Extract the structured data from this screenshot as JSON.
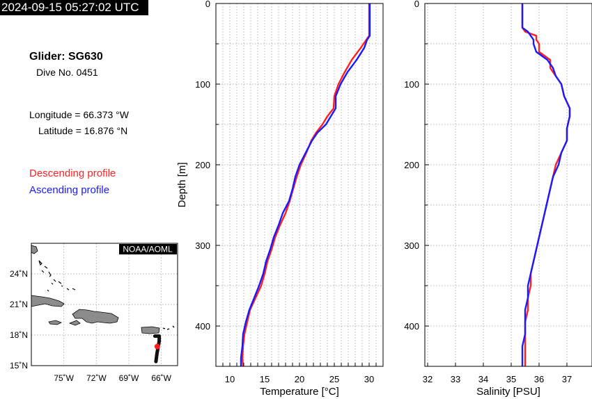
{
  "timestamp": "2024-09-15 05:27:02 UTC",
  "info": {
    "glider": "Glider: SG630",
    "dive": "Dive No. 0451",
    "longitude": "Longitude = 66.373 °W",
    "latitude": "Latitude = 16.876 °N"
  },
  "legend": {
    "descending": "Descending profile",
    "ascending": "Ascending profile"
  },
  "colors": {
    "descending": "#ff1f1f",
    "ascending": "#1a1aff",
    "land": "#8c8c8c",
    "track": "#111111",
    "grid": "#9a9a9a"
  },
  "map": {
    "label": "NOAA/AOML",
    "lat_ticks": [
      "24˚N",
      "21˚N",
      "18˚N",
      "15˚N"
    ],
    "lon_ticks": [
      "75˚W",
      "72˚W",
      "69˚W",
      "66˚W"
    ],
    "lon_range": [
      -78,
      -64.5
    ],
    "lat_range": [
      15,
      27
    ],
    "track": [
      [
        -66.6,
        17.9
      ],
      [
        -66.2,
        17.9
      ],
      [
        -66.2,
        17.4
      ],
      [
        -66.3,
        16.8
      ],
      [
        -66.4,
        16.2
      ],
      [
        -66.5,
        15.4
      ]
    ],
    "current_position": [
      -66.373,
      16.876
    ]
  },
  "chart_data": [
    {
      "type": "line",
      "xlabel": "Temperature [°C]",
      "ylabel": "Depth [m]",
      "xlim": [
        8,
        32
      ],
      "ylim": [
        450,
        0
      ],
      "xticks": [
        "10",
        "15",
        "20",
        "25",
        "30"
      ],
      "yticks": [
        "0",
        "100",
        "200",
        "300",
        "400"
      ],
      "grid": true,
      "series": [
        {
          "name": "Descending profile",
          "color": "#ff1f1f",
          "depth": [
            0,
            20,
            40,
            45,
            55,
            70,
            85,
            100,
            115,
            130,
            140,
            150,
            160,
            170,
            185,
            200,
            215,
            230,
            245,
            260,
            275,
            290,
            305,
            320,
            335,
            350,
            365,
            380,
            395,
            410,
            425,
            440,
            450
          ],
          "temp": [
            30.0,
            30.0,
            30.0,
            29.6,
            28.8,
            27.5,
            26.5,
            25.6,
            25.0,
            24.9,
            24.0,
            23.3,
            22.4,
            21.7,
            21.0,
            20.2,
            19.6,
            19.1,
            18.6,
            18.0,
            17.2,
            16.5,
            16.0,
            15.4,
            15.0,
            14.5,
            13.7,
            12.9,
            12.5,
            12.1,
            11.9,
            11.8,
            11.9
          ]
        },
        {
          "name": "Ascending profile",
          "color": "#1a1aff",
          "depth": [
            0,
            20,
            40,
            45,
            55,
            70,
            85,
            100,
            115,
            130,
            140,
            150,
            160,
            170,
            185,
            200,
            215,
            230,
            245,
            260,
            275,
            290,
            305,
            320,
            335,
            350,
            365,
            380,
            395,
            410,
            425,
            440,
            450
          ],
          "temp": [
            30.1,
            30.1,
            30.1,
            29.7,
            29.3,
            28.2,
            26.9,
            25.9,
            25.2,
            25.2,
            24.5,
            23.8,
            22.6,
            21.8,
            20.9,
            20.0,
            19.4,
            19.0,
            18.5,
            17.6,
            17.0,
            16.3,
            15.8,
            15.2,
            14.8,
            14.2,
            13.5,
            12.8,
            12.3,
            11.9,
            11.8,
            11.6,
            11.6
          ]
        }
      ]
    },
    {
      "type": "line",
      "xlabel": "Salinity [PSU]",
      "ylabel": "",
      "xlim": [
        31.9,
        37.9
      ],
      "ylim": [
        450,
        0
      ],
      "xticks": [
        "32",
        "33",
        "34",
        "35",
        "36",
        "37"
      ],
      "yticks": [
        "0",
        "100",
        "200",
        "300",
        "400"
      ],
      "grid": true,
      "series": [
        {
          "name": "Descending profile",
          "color": "#ff1f1f",
          "depth": [
            0,
            30,
            35,
            40,
            45,
            50,
            60,
            65,
            70,
            80,
            90,
            100,
            115,
            130,
            140,
            155,
            170,
            185,
            200,
            215,
            230,
            245,
            260,
            275,
            290,
            305,
            320,
            335,
            350,
            365,
            380,
            395,
            410,
            425,
            440,
            450
          ],
          "sal": [
            35.4,
            35.4,
            35.5,
            35.9,
            35.9,
            36.0,
            36.0,
            36.2,
            36.4,
            36.4,
            36.6,
            36.8,
            36.9,
            37.1,
            37.1,
            37.0,
            37.0,
            36.8,
            36.6,
            36.5,
            36.4,
            36.3,
            36.2,
            36.1,
            36.0,
            35.9,
            35.8,
            35.7,
            35.7,
            35.6,
            35.6,
            35.5,
            35.5,
            35.5,
            35.5,
            35.5
          ]
        },
        {
          "name": "Ascending profile",
          "color": "#1a1aff",
          "depth": [
            0,
            30,
            35,
            40,
            45,
            50,
            60,
            65,
            70,
            80,
            90,
            100,
            115,
            130,
            140,
            155,
            170,
            185,
            200,
            215,
            230,
            245,
            260,
            275,
            290,
            305,
            320,
            335,
            350,
            365,
            380,
            395,
            410,
            425,
            440,
            450
          ],
          "sal": [
            35.4,
            35.4,
            35.6,
            35.7,
            35.8,
            35.8,
            35.9,
            36.1,
            36.3,
            36.5,
            36.6,
            36.8,
            36.9,
            37.1,
            37.1,
            37.0,
            37.0,
            36.8,
            36.7,
            36.5,
            36.4,
            36.3,
            36.2,
            36.1,
            36.0,
            35.9,
            35.8,
            35.7,
            35.6,
            35.6,
            35.5,
            35.5,
            35.5,
            35.4,
            35.4,
            35.4
          ]
        }
      ]
    }
  ]
}
